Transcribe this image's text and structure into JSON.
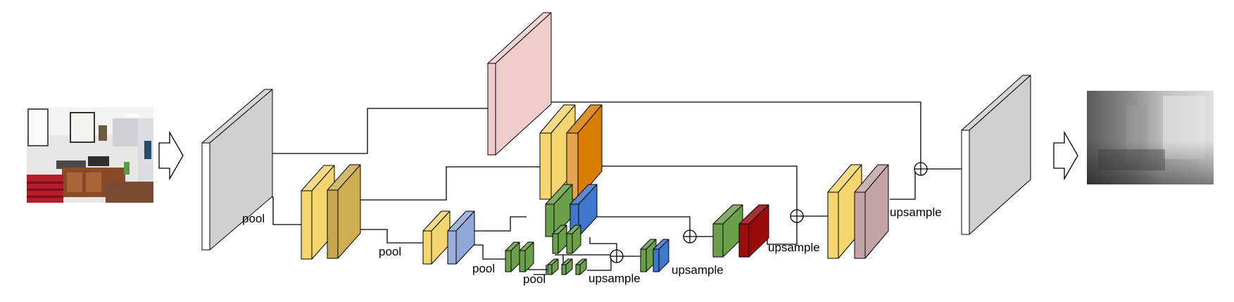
{
  "labels": {
    "pool": "pool",
    "upsample": "upsample"
  },
  "colors": {
    "gray": "#cfcfcf",
    "yellow": "#f5d56e",
    "gold": "#cfae52",
    "light_blue": "#90a8d8",
    "orange": "#d87d00",
    "green": "#6aa04a",
    "blue": "#3f77cc",
    "dark_red": "#9a0c0c",
    "pink": "#f2cccc",
    "mauve": "#c4a3a6"
  },
  "images": {
    "input": "office-room-photo",
    "output": "depth-map"
  },
  "icons": {
    "arrow": "hollow-right-arrow-icon",
    "sum": "circled-plus-icon"
  }
}
